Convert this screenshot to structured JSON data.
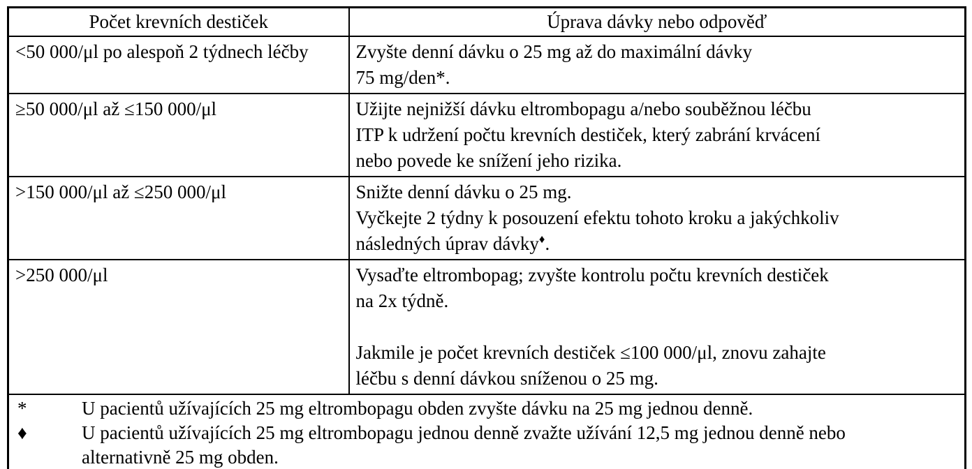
{
  "table": {
    "header": {
      "platelet_count": "Počet krevních destiček",
      "dose_adjustment": "Úprava dávky nebo odpověď"
    },
    "rows": [
      {
        "count": "<50 000/μl po alespoň 2 týdnech léčby",
        "action_lines": [
          "Zvyšte denní dávku o 25 mg až do maximální dávky",
          "75 mg/den*."
        ]
      },
      {
        "count": "≥50 000/μl až ≤150 000/μl",
        "action_lines": [
          "Užijte nejnižší dávku eltrombopagu a/nebo souběžnou léčbu",
          "ITP k udržení počtu krevních destiček, který zabrání krvácení",
          "nebo povede ke snížení jeho rizika."
        ]
      },
      {
        "count": ">150 000/μl až ≤250 000/μl",
        "action_lines": [
          "Snižte denní dávku o 25 mg.",
          "Vyčkejte 2 týdny k posouzení efektu tohoto kroku a jakýchkoliv"
        ],
        "action_last_line": {
          "text": "následných úprav dávky",
          "sup": "♦",
          "end": "."
        }
      },
      {
        "count": ">250 000/μl",
        "action_paragraph1": [
          "Vysaďte eltrombopag; zvyšte kontrolu počtu krevních destiček",
          "na 2x týdně."
        ],
        "action_paragraph2": [
          "Jakmile je počet krevních destiček ≤100 000/μl, znovu zahajte",
          "léčbu s denní dávkou sníženou o 25 mg."
        ]
      }
    ],
    "footnotes": [
      {
        "symbol": "*",
        "lines": [
          "U pacientů užívajících 25 mg eltrombopagu obden zvyšte dávku na 25 mg jednou denně."
        ]
      },
      {
        "symbol": "♦",
        "lines": [
          "U pacientů užívajících 25 mg eltrombopagu jednou denně zvažte užívání 12,5 mg jednou denně nebo",
          "alternativně 25 mg obden."
        ]
      }
    ]
  }
}
